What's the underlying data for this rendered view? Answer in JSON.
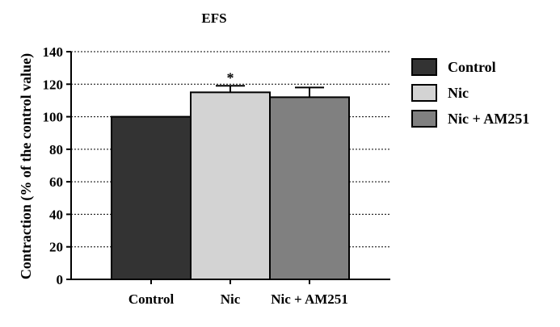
{
  "chart_data": {
    "type": "bar",
    "title": "EFS",
    "xlabel": "",
    "ylabel": "Contraction (% of the control value)",
    "ylim": [
      0,
      140
    ],
    "yticks": [
      0,
      20,
      40,
      60,
      80,
      100,
      120,
      140
    ],
    "grid": "horizontal dotted",
    "legend_position": "right",
    "categories": [
      "Control",
      "Nic",
      "Nic + AM251"
    ],
    "values": [
      100,
      115,
      112
    ],
    "errors": [
      0,
      4,
      6
    ],
    "colors": [
      "#333333",
      "#d3d3d3",
      "#808080"
    ],
    "annotations": [
      {
        "category": "Nic",
        "text": "*"
      }
    ],
    "legend": [
      {
        "label": "Control",
        "color": "#333333"
      },
      {
        "label": "Nic",
        "color": "#d3d3d3"
      },
      {
        "label": "Nic + AM251",
        "color": "#808080"
      }
    ]
  }
}
